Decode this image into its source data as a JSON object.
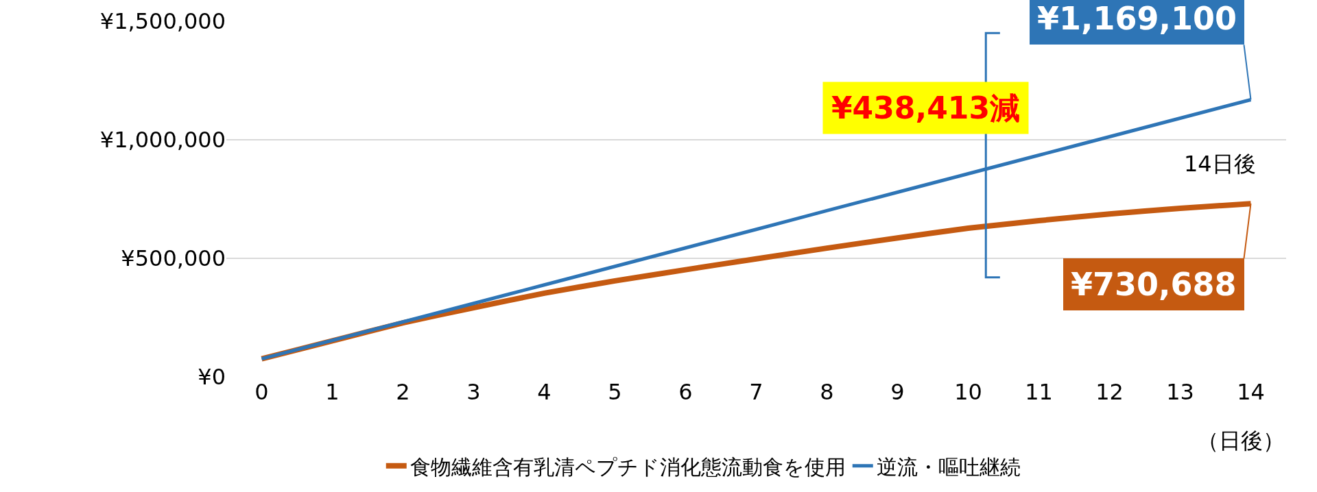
{
  "chart_data": {
    "type": "line",
    "xlabel": "（日後）",
    "x": [
      0,
      1,
      2,
      3,
      4,
      5,
      6,
      7,
      8,
      9,
      10,
      11,
      12,
      13,
      14
    ],
    "series": [
      {
        "name": "食物繊維含有乳清ペプチド消化態流動食を使用",
        "color": "#c55a11",
        "values": [
          76000,
          152000,
          228000,
          292000,
          353000,
          405000,
          452000,
          498000,
          543000,
          586000,
          627000,
          659000,
          687000,
          711000,
          730688
        ],
        "value_labels": [
          null,
          null,
          null,
          null,
          null,
          null,
          null,
          null,
          null,
          null,
          null,
          null,
          null,
          null,
          "¥730,688"
        ]
      },
      {
        "name": "逆流・嘔吐継続",
        "color": "#2e75b6",
        "values": [
          76000,
          154000,
          232000,
          310000,
          388000,
          466000,
          544000,
          622000,
          701000,
          779000,
          857000,
          935000,
          1013000,
          1091000,
          1169100
        ],
        "value_labels": [
          null,
          null,
          null,
          null,
          null,
          null,
          null,
          null,
          null,
          null,
          null,
          null,
          null,
          null,
          "¥1,169,100"
        ]
      }
    ],
    "annotations": [
      "¥438,413減",
      "14日後"
    ],
    "xlim": [
      -0.5,
      14.5
    ],
    "xticks": [
      0,
      1,
      2,
      3,
      4,
      5,
      6,
      7,
      8,
      9,
      10,
      11,
      12,
      13,
      14
    ],
    "ylim": [
      0,
      1500000
    ],
    "yticks": [
      {
        "value": 0,
        "label": "¥0"
      },
      {
        "value": 500000,
        "label": "¥500,000"
      },
      {
        "value": 1000000,
        "label": "¥1,000,000"
      },
      {
        "value": 1500000,
        "label": "¥1,500,000"
      }
    ],
    "grid": "y",
    "legend": "bottom",
    "line_style": "solid",
    "marker": "none"
  }
}
